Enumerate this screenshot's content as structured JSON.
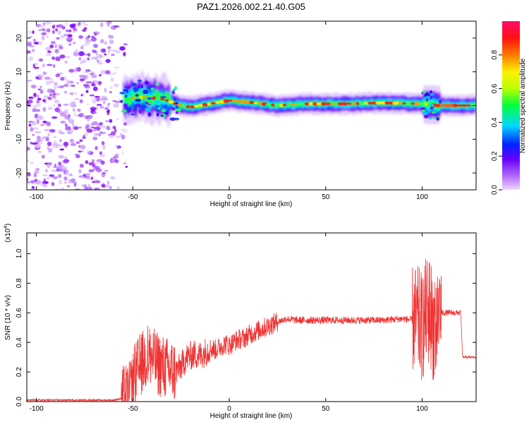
{
  "title": "PAZ1.2026.002.21.40.G05",
  "chart_data": [
    {
      "type": "heatmap",
      "xlabel": "Height of straight line (km)",
      "ylabel": "Frequency (Hz)",
      "xlim": [
        -105,
        128
      ],
      "ylim": [
        -25,
        25
      ],
      "xticks": [
        -100,
        -50,
        0,
        50,
        100
      ],
      "yticks": [
        -20,
        -10,
        0,
        10,
        20
      ],
      "colorbar": {
        "label": "Normalized spectral amplitude",
        "range": [
          0,
          1
        ],
        "ticks": [
          "0.0",
          "0.2",
          "0.4",
          "0.6",
          "0.8"
        ],
        "tick_values": [
          0,
          0.2,
          0.4,
          0.6,
          0.8
        ],
        "colormap": "purple-blue-cyan-green-yellow-red-magenta"
      },
      "ridge_frequency_hz": [
        [
          -55,
          2
        ],
        [
          -45,
          2.5
        ],
        [
          -35,
          2
        ],
        [
          -25,
          0
        ],
        [
          -20,
          -0.5
        ],
        [
          -10,
          0.5
        ],
        [
          0,
          1.5
        ],
        [
          10,
          1
        ],
        [
          25,
          0
        ],
        [
          40,
          0.5
        ],
        [
          60,
          0.5
        ],
        [
          80,
          0.8
        ],
        [
          100,
          0.5
        ],
        [
          108,
          0
        ],
        [
          128,
          0
        ]
      ],
      "noise_region_km": [
        -105,
        -55
      ],
      "colors": {
        "noise": "#8a2be2",
        "ridge_core": "#ff2020"
      }
    },
    {
      "type": "line",
      "xlabel": "Height of straight line (km)",
      "ylabel": "SNR (10 * v/v)",
      "y_scale_label": "(x10",
      "y_scale_exponent": "4",
      "y_scale_suffix": ")",
      "y_multiplier": 10000,
      "xlim": [
        -105,
        128
      ],
      "ylim": [
        0,
        1.14
      ],
      "xticks": [
        -100,
        -50,
        0,
        50,
        100
      ],
      "yticks": [
        "0.0",
        "0.2",
        "0.4",
        "0.6",
        "0.8",
        "1.0"
      ],
      "ytick_values": [
        0,
        0.2,
        0.4,
        0.6,
        0.8,
        1.0
      ],
      "series": [
        {
          "color": "#ee3333",
          "x": [
            -105,
            -60,
            -56,
            -52,
            -50,
            -48,
            -46,
            -44,
            -42,
            -40,
            -38,
            -35,
            -32,
            -28,
            -25,
            -22,
            -20,
            -18,
            -15,
            -12,
            -10,
            -7,
            -5,
            -2,
            0,
            3,
            5,
            8,
            10,
            15,
            20,
            25,
            30,
            35,
            40,
            50,
            60,
            70,
            80,
            90,
            95,
            98,
            100,
            102,
            104,
            106,
            107,
            108,
            110,
            115,
            120,
            121,
            122,
            128
          ],
          "y": [
            0.01,
            0.01,
            0.02,
            0.05,
            0.12,
            0.2,
            0.25,
            0.28,
            0.32,
            0.3,
            0.26,
            0.24,
            0.22,
            0.2,
            0.24,
            0.3,
            0.31,
            0.32,
            0.31,
            0.34,
            0.36,
            0.35,
            0.37,
            0.39,
            0.38,
            0.41,
            0.42,
            0.43,
            0.45,
            0.48,
            0.51,
            0.54,
            0.56,
            0.55,
            0.55,
            0.55,
            0.55,
            0.55,
            0.55,
            0.56,
            0.55,
            0.54,
            0.5,
            0.6,
            0.62,
            0.5,
            0.45,
            0.6,
            0.6,
            0.6,
            0.6,
            0.3,
            0.3,
            0.3
          ]
        }
      ]
    }
  ]
}
